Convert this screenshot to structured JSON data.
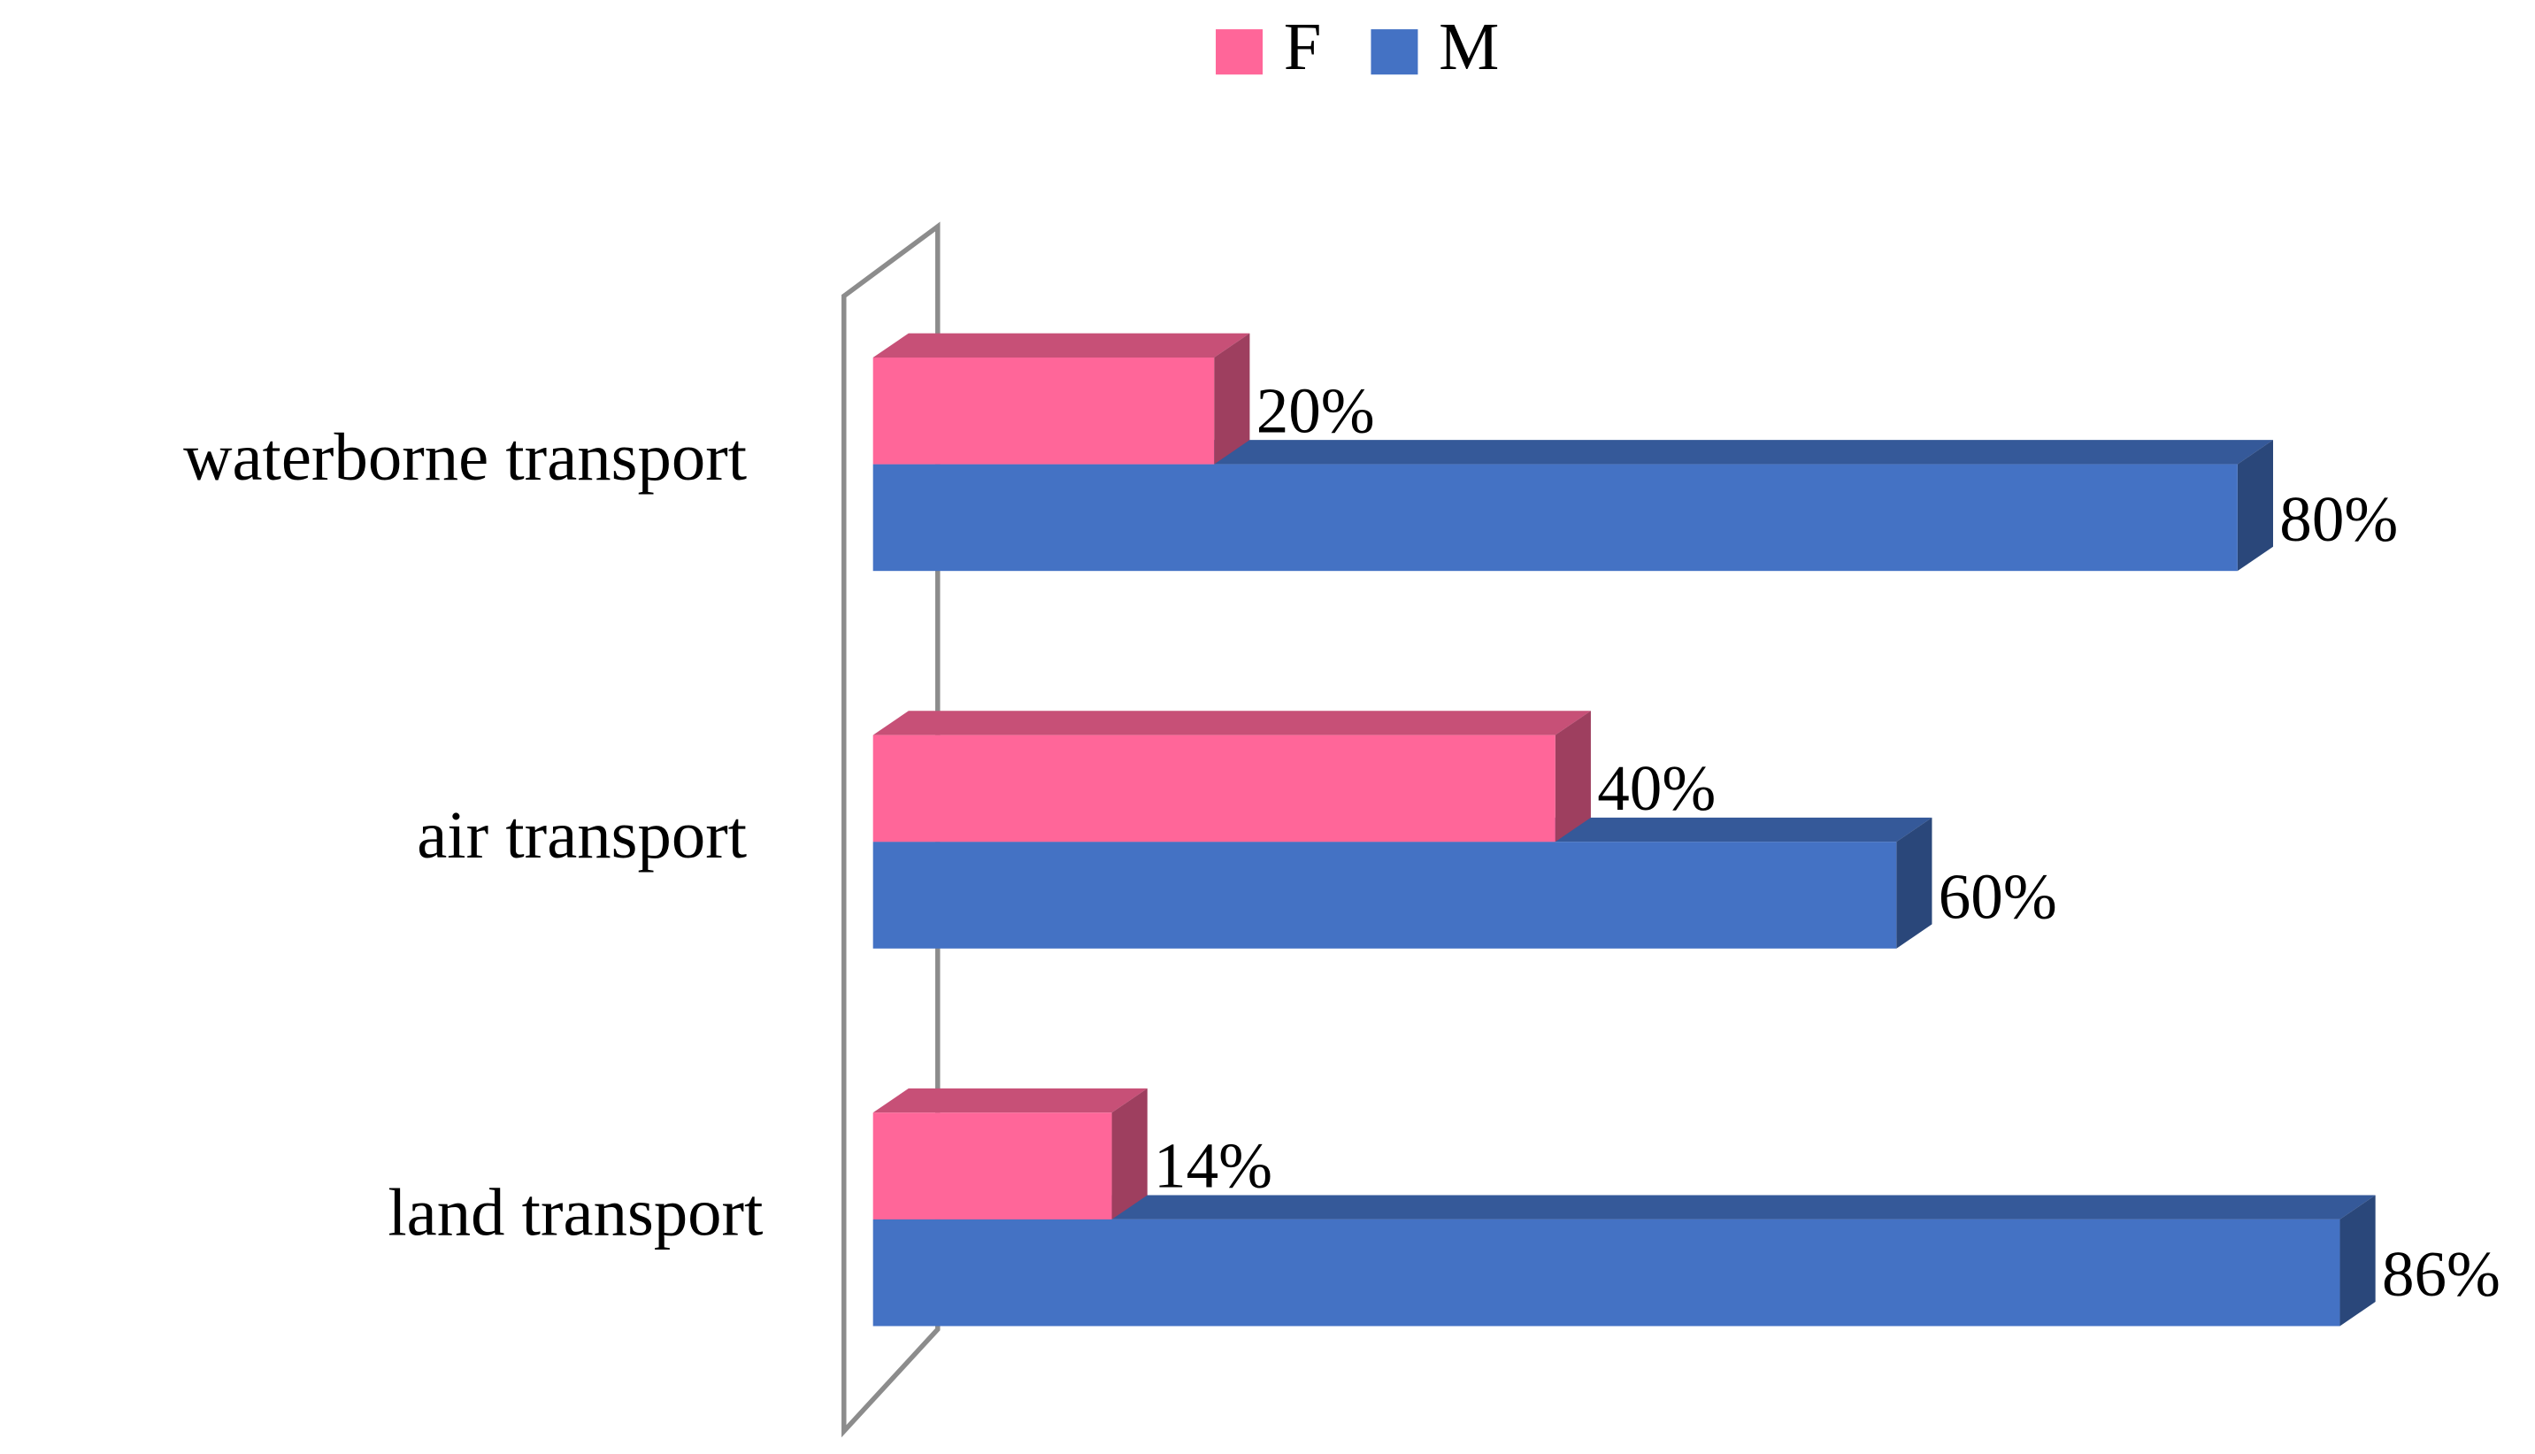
{
  "chart_data": {
    "type": "bar3d-horizontal",
    "categories": [
      "waterborne transport",
      "air transport",
      "land transport"
    ],
    "series": [
      {
        "name": "F",
        "color": "#ff6699",
        "values": [
          20,
          40,
          14
        ],
        "value_labels": [
          "20%",
          "40%",
          "14%"
        ]
      },
      {
        "name": "M",
        "color": "#4472c4",
        "values": [
          80,
          60,
          86
        ],
        "value_labels": [
          "80%",
          "60%",
          "86%"
        ]
      }
    ],
    "xlim": [
      0,
      100
    ],
    "legend": "top"
  }
}
